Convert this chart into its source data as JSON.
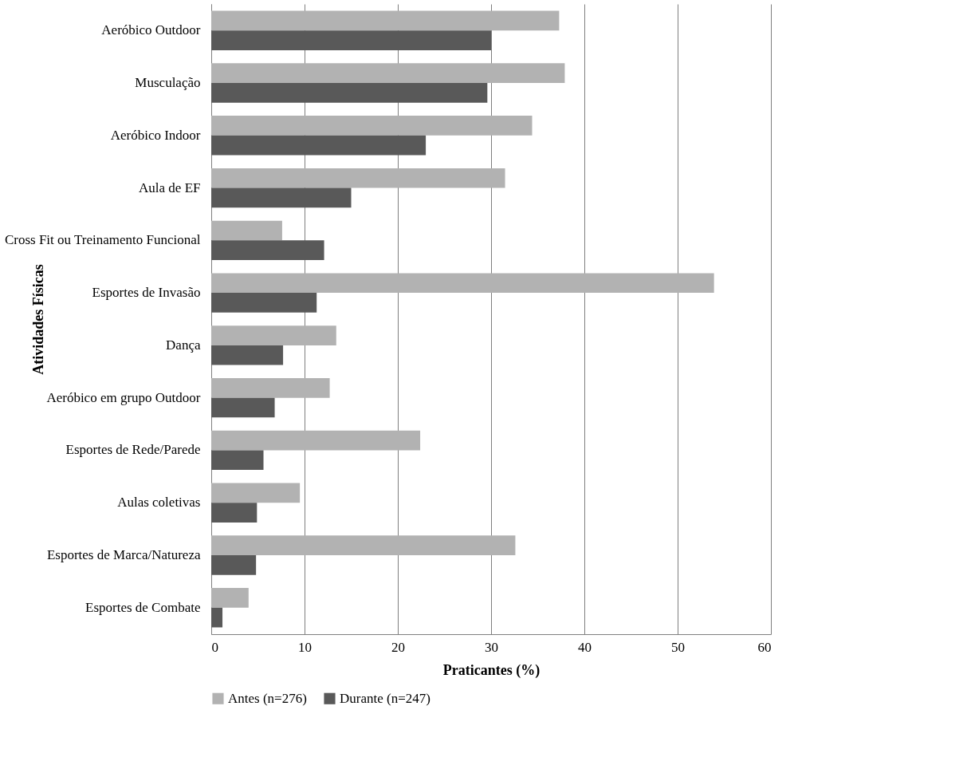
{
  "chart_data": {
    "type": "bar",
    "orientation": "horizontal",
    "xlabel": "Praticantes (%)",
    "ylabel": "Atividades Físicas",
    "categories": [
      "Aeróbico Outdoor",
      "Musculação",
      "Aeróbico Indoor",
      "Aula de EF",
      "Cross Fit ou Treinamento Funcional",
      "Esportes de Invasão",
      "Dança",
      "Aeróbico em grupo Outdoor",
      "Esportes de Rede/Parede",
      "Aulas coletivas",
      "Esportes de Marca/Natureza",
      "Esportes de Combate"
    ],
    "series": [
      {
        "name": "Antes (n=276)",
        "color": "#b2b2b2",
        "values": [
          37.3,
          37.9,
          34.4,
          31.5,
          7.6,
          53.9,
          13.4,
          12.7,
          22.4,
          9.5,
          32.6,
          4.0
        ]
      },
      {
        "name": "Durante (n=247)",
        "color": "#595959",
        "values": [
          30.0,
          29.6,
          23.0,
          15.0,
          12.1,
          11.3,
          7.7,
          6.8,
          5.6,
          4.9,
          4.8,
          1.2
        ]
      }
    ],
    "xlim": [
      0,
      60
    ],
    "xticks": [
      0,
      10,
      20,
      30,
      40,
      50,
      60
    ],
    "grid": "x",
    "legend": "bottom"
  }
}
